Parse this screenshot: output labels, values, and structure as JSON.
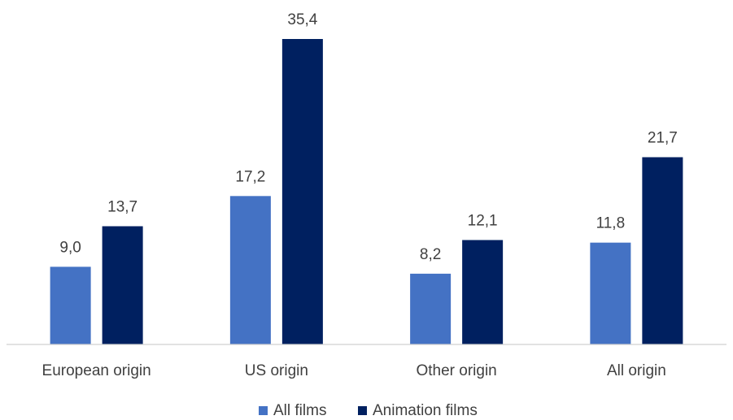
{
  "chart_data": {
    "type": "bar",
    "categories": [
      "European origin",
      "US origin",
      "Other origin",
      "All origin"
    ],
    "series": [
      {
        "name": "All films",
        "color": "#4472C4",
        "values": [
          9.0,
          17.2,
          8.2,
          11.8
        ],
        "labels": [
          "9,0",
          "17,2",
          "8,2",
          "11,8"
        ]
      },
      {
        "name": "Animation films",
        "color": "#002060",
        "values": [
          13.7,
          35.4,
          12.1,
          21.7
        ],
        "labels": [
          "13,7",
          "35,4",
          "12,1",
          "21,7"
        ]
      }
    ],
    "ylim": [
      0,
      35.4
    ],
    "grid": false,
    "legend": "bottom"
  }
}
